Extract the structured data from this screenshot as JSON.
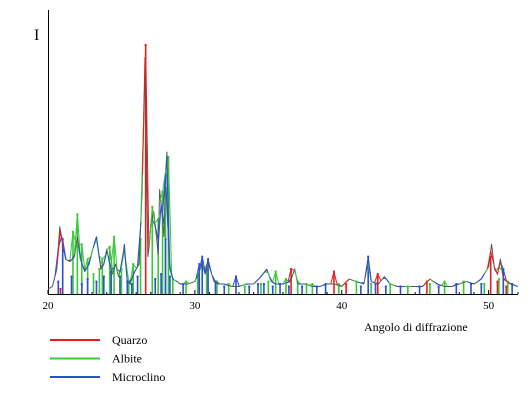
{
  "chart_data": {
    "type": "line",
    "ylabel": "I",
    "xlabel": "Angolo di diffrazione",
    "xlim": [
      20,
      52
    ],
    "ylim": [
      0,
      100
    ],
    "x_ticks": [
      20,
      30,
      40,
      50
    ],
    "grid": false,
    "legend_position": "bottom-left",
    "pattern": {
      "color": "#555555",
      "x": [
        20.0,
        20.3,
        20.6,
        20.8,
        21.0,
        21.2,
        21.5,
        21.8,
        22.0,
        22.2,
        22.5,
        22.8,
        23.0,
        23.3,
        23.6,
        23.8,
        24.0,
        24.2,
        24.4,
        24.6,
        24.8,
        25.0,
        25.2,
        25.4,
        25.6,
        25.8,
        26.0,
        26.2,
        26.4,
        26.6,
        26.7,
        26.8,
        26.9,
        27.0,
        27.2,
        27.4,
        27.5,
        27.6,
        27.8,
        27.9,
        28.0,
        28.1,
        28.2,
        28.3,
        28.5,
        28.8,
        29.0,
        29.5,
        30.0,
        30.3,
        30.5,
        30.7,
        30.9,
        31.1,
        31.3,
        31.6,
        32.0,
        32.5,
        33.0,
        33.5,
        34.0,
        34.5,
        34.9,
        35.2,
        35.5,
        36.0,
        36.5,
        36.8,
        37.0,
        37.5,
        38.0,
        38.5,
        39.0,
        39.5,
        40.0,
        40.5,
        41.0,
        41.5,
        41.8,
        42.0,
        42.5,
        42.9,
        43.3,
        43.8,
        44.5,
        45.0,
        45.5,
        46.0,
        46.5,
        47.0,
        47.5,
        48.0,
        48.5,
        49.0,
        49.5,
        50.0,
        50.2,
        50.4,
        50.6,
        50.8,
        51.0,
        51.5,
        52.0
      ],
      "y": [
        2,
        3,
        10,
        27,
        20,
        14,
        13,
        15,
        23,
        14,
        9,
        12,
        17,
        23,
        10,
        12,
        18,
        12,
        8,
        12,
        7,
        11,
        20,
        5,
        4,
        8,
        10,
        12,
        40,
        95,
        60,
        15,
        20,
        28,
        33,
        22,
        16,
        42,
        30,
        23,
        48,
        57,
        22,
        10,
        6,
        5,
        4,
        4,
        5,
        9,
        12,
        8,
        12,
        9,
        5,
        4,
        4,
        3,
        3,
        4,
        4,
        7,
        10,
        5,
        4,
        4,
        5,
        10,
        4,
        4,
        3,
        3,
        4,
        4,
        3,
        6,
        5,
        4,
        13,
        5,
        4,
        7,
        4,
        3,
        3,
        3,
        3,
        6,
        4,
        3,
        3,
        4,
        5,
        4,
        6,
        11,
        20,
        10,
        8,
        14,
        6,
        4,
        3
      ]
    },
    "series": [
      {
        "name": "Quarzo",
        "color": "#e81e1e",
        "x": [
          20.85,
          26.65,
          36.55,
          39.47,
          40.3,
          42.45,
          45.8,
          50.14,
          50.6,
          51.2
        ],
        "y": [
          2,
          100,
          10,
          9,
          4,
          8,
          5,
          15,
          5,
          3
        ]
      },
      {
        "name": "Albite",
        "color": "#38c838",
        "x": [
          21.7,
          22.0,
          22.3,
          22.7,
          23.1,
          23.5,
          23.7,
          24.2,
          24.5,
          25.0,
          25.5,
          25.8,
          26.3,
          27.1,
          27.5,
          27.8,
          28.0,
          28.2,
          28.5,
          29.4,
          30.2,
          30.8,
          31.5,
          32.3,
          33.4,
          34.5,
          35.0,
          35.5,
          36.2,
          37.0,
          37.6,
          38.0,
          39.8,
          41.0,
          42.0,
          43.3,
          44.5,
          46.0,
          47.0,
          48.3,
          49.7,
          50.7,
          51.3
        ],
        "y": [
          25,
          32,
          20,
          14,
          8,
          10,
          14,
          19,
          23,
          10,
          5,
          12,
          22,
          35,
          30,
          41,
          48,
          55,
          6,
          5,
          8,
          11,
          5,
          4,
          3,
          4,
          5,
          9,
          6,
          5,
          4,
          4,
          4,
          5,
          4,
          4,
          3,
          4,
          5,
          5,
          4,
          6,
          5
        ]
      },
      {
        "name": "Microclino",
        "color": "#2c4fd4",
        "x": [
          20.7,
          21.0,
          21.6,
          22.3,
          22.7,
          23.3,
          23.8,
          24.3,
          24.9,
          25.4,
          25.7,
          26.1,
          27.3,
          27.7,
          28.0,
          28.3,
          29.2,
          30.3,
          30.5,
          30.9,
          31.4,
          32.0,
          32.8,
          33.7,
          34.3,
          34.7,
          35.3,
          35.8,
          36.4,
          37.3,
          38.3,
          38.9,
          41.3,
          41.8,
          42.3,
          43.0,
          44.0,
          45.3,
          46.6,
          47.8,
          48.8,
          49.5,
          51.0,
          51.6
        ],
        "y": [
          5,
          22,
          7,
          4,
          6,
          5,
          7,
          9,
          7,
          5,
          4,
          7,
          6,
          8,
          22,
          7,
          4,
          12,
          15,
          14,
          5,
          3,
          7,
          3,
          4,
          4,
          3,
          4,
          3,
          3,
          3,
          4,
          3,
          15,
          4,
          3,
          3,
          3,
          3,
          4,
          4,
          4,
          10,
          4
        ]
      }
    ]
  }
}
